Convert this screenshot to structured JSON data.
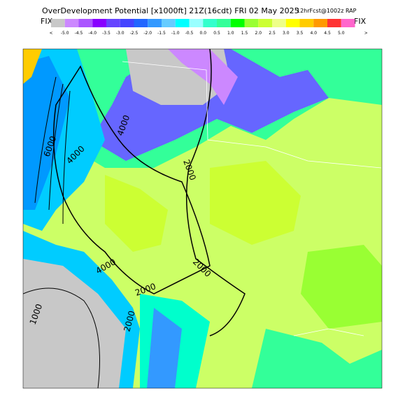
{
  "header": {
    "title": "OverDevelopment Potential [x1000ft] 21Z(16cdt) FRI 02 May 2025",
    "subtitle": "12hrFcst@1002z RAP"
  },
  "legend": {
    "left_label": "FIX",
    "right_label": "FIX",
    "labels": [
      "<",
      "-5.0",
      "-4.5",
      "-4.0",
      "-3.5",
      "-3.0",
      "-2.5",
      "-2.0",
      "-1.5",
      "-1.0",
      "-0.5",
      "0.0",
      "0.5",
      "1.0",
      "1.5",
      "2.0",
      "2.5",
      "3.0",
      "3.5",
      "4.0",
      "4.5",
      "5.0",
      ">"
    ]
  },
  "contour_labels": [
    "6000",
    "4000",
    "4000",
    "2000",
    "2000",
    "4000",
    "2000",
    "2000",
    "1000"
  ]
}
